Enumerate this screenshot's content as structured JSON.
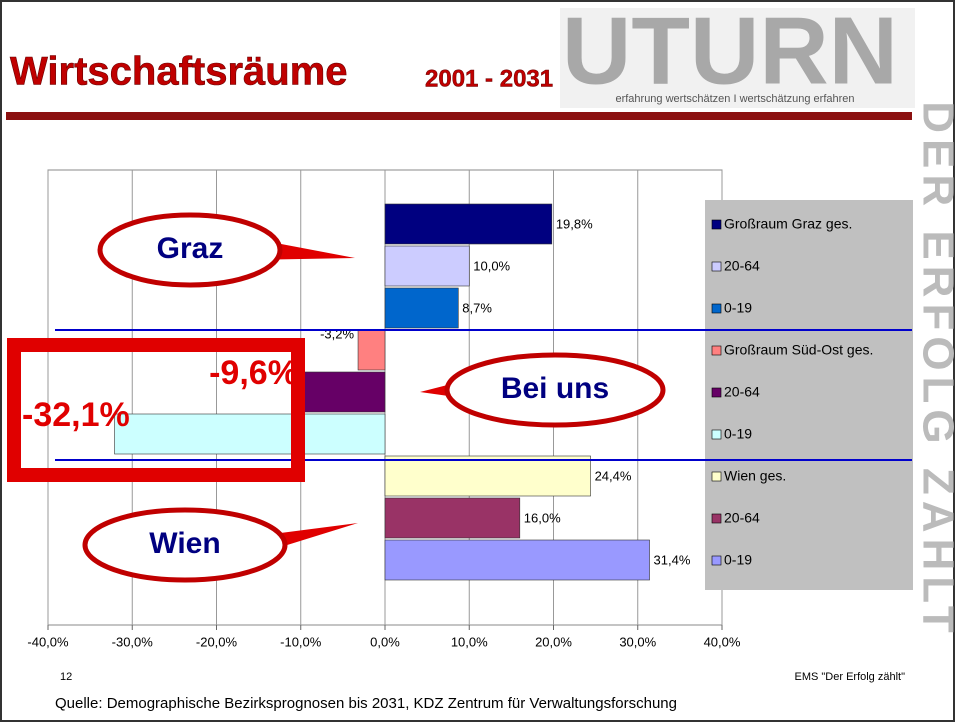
{
  "header": {
    "title": "Wirtschaftsräume",
    "subtitle": "2001 - 2031",
    "logo": "UTURN",
    "slogan": "erfahrung wertschätzen I wertschätzung erfahren",
    "side_text": "DER ERFOLG ZÄHLT"
  },
  "chart_data": {
    "type": "bar",
    "orientation": "horizontal",
    "categories": [
      "Großraum Graz ges.",
      "20-64",
      "0-19",
      "Großraum Süd-Ost ges.",
      "20-64",
      "0-19",
      "Wien ges.",
      "20-64",
      "0-19"
    ],
    "values": [
      19.8,
      10.0,
      8.7,
      -3.2,
      -9.6,
      -32.1,
      24.4,
      16.0,
      31.4
    ],
    "value_labels": [
      "19,8%",
      "10,0%",
      "8,7%",
      "-3,2%",
      "-9,6%",
      "-32,1%",
      "24,4%",
      "16,0%",
      "31,4%"
    ],
    "colors": [
      "#000080",
      "#ccccff",
      "#0066cc",
      "#ff8080",
      "#660066",
      "#ccffff",
      "#ffffcc",
      "#993366",
      "#9999ff"
    ],
    "xlim": [
      -40,
      40
    ],
    "xticks": [
      {
        "value": -40,
        "label": "-40,0%"
      },
      {
        "value": -30,
        "label": "-30,0%"
      },
      {
        "value": -20,
        "label": "-20,0%"
      },
      {
        "value": -10,
        "label": "-10,0%"
      },
      {
        "value": 0,
        "label": "0,0%"
      },
      {
        "value": 10,
        "label": "10,0%"
      },
      {
        "value": 20,
        "label": "20,0%"
      },
      {
        "value": 30,
        "label": "30,0%"
      },
      {
        "value": 40,
        "label": "40,0%"
      }
    ],
    "grid": true,
    "annotations": [
      "Graz",
      "Bei uns",
      "Wien"
    ]
  },
  "footer": {
    "page": "12",
    "brand": "EMS \"Der Erfolg zählt\"",
    "source": "Quelle: Demographische Bezirksprognosen bis 2031, KDZ Zentrum für Verwaltungsforschung"
  }
}
